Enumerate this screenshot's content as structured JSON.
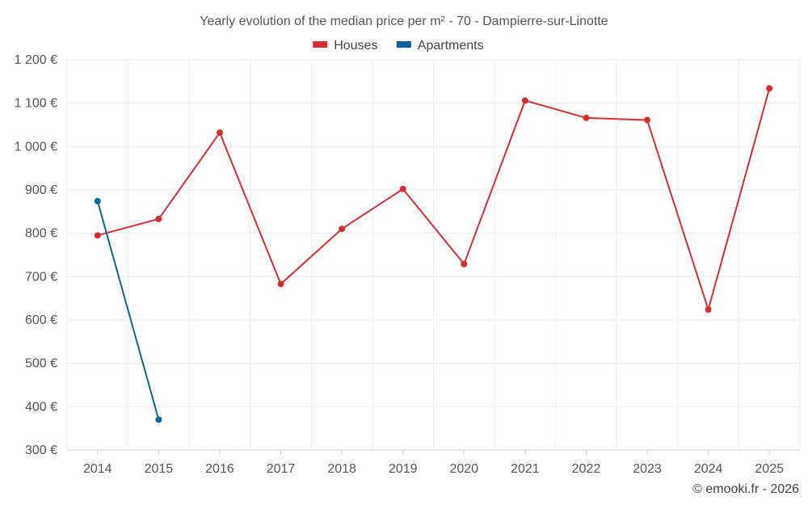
{
  "chart_data": {
    "type": "line",
    "title": "Yearly evolution of the median price per m² - 70 - Dampierre-sur-Linotte",
    "categories": [
      "2014",
      "2015",
      "2016",
      "2017",
      "2018",
      "2019",
      "2020",
      "2021",
      "2022",
      "2023",
      "2024",
      "2025"
    ],
    "ylim": [
      300,
      1200
    ],
    "yticks": [
      300,
      400,
      500,
      600,
      700,
      800,
      900,
      1000,
      1100,
      1200
    ],
    "ytick_labels": [
      "300 €",
      "400 €",
      "500 €",
      "600 €",
      "700 €",
      "800 €",
      "900 €",
      "1 000 €",
      "1 100 €",
      "1 200 €"
    ],
    "grid": true,
    "legend_position": "top-center",
    "series": [
      {
        "name": "Houses",
        "color": "#d32f2f",
        "values": [
          795,
          833,
          1032,
          683,
          810,
          902,
          729,
          1106,
          1066,
          1061,
          624,
          1134
        ]
      },
      {
        "name": "Apartments",
        "color": "#0d6699",
        "values": [
          874,
          370,
          null,
          null,
          null,
          null,
          null,
          null,
          null,
          null,
          null,
          null
        ]
      }
    ]
  },
  "credit": "© emooki.fr - 2026"
}
